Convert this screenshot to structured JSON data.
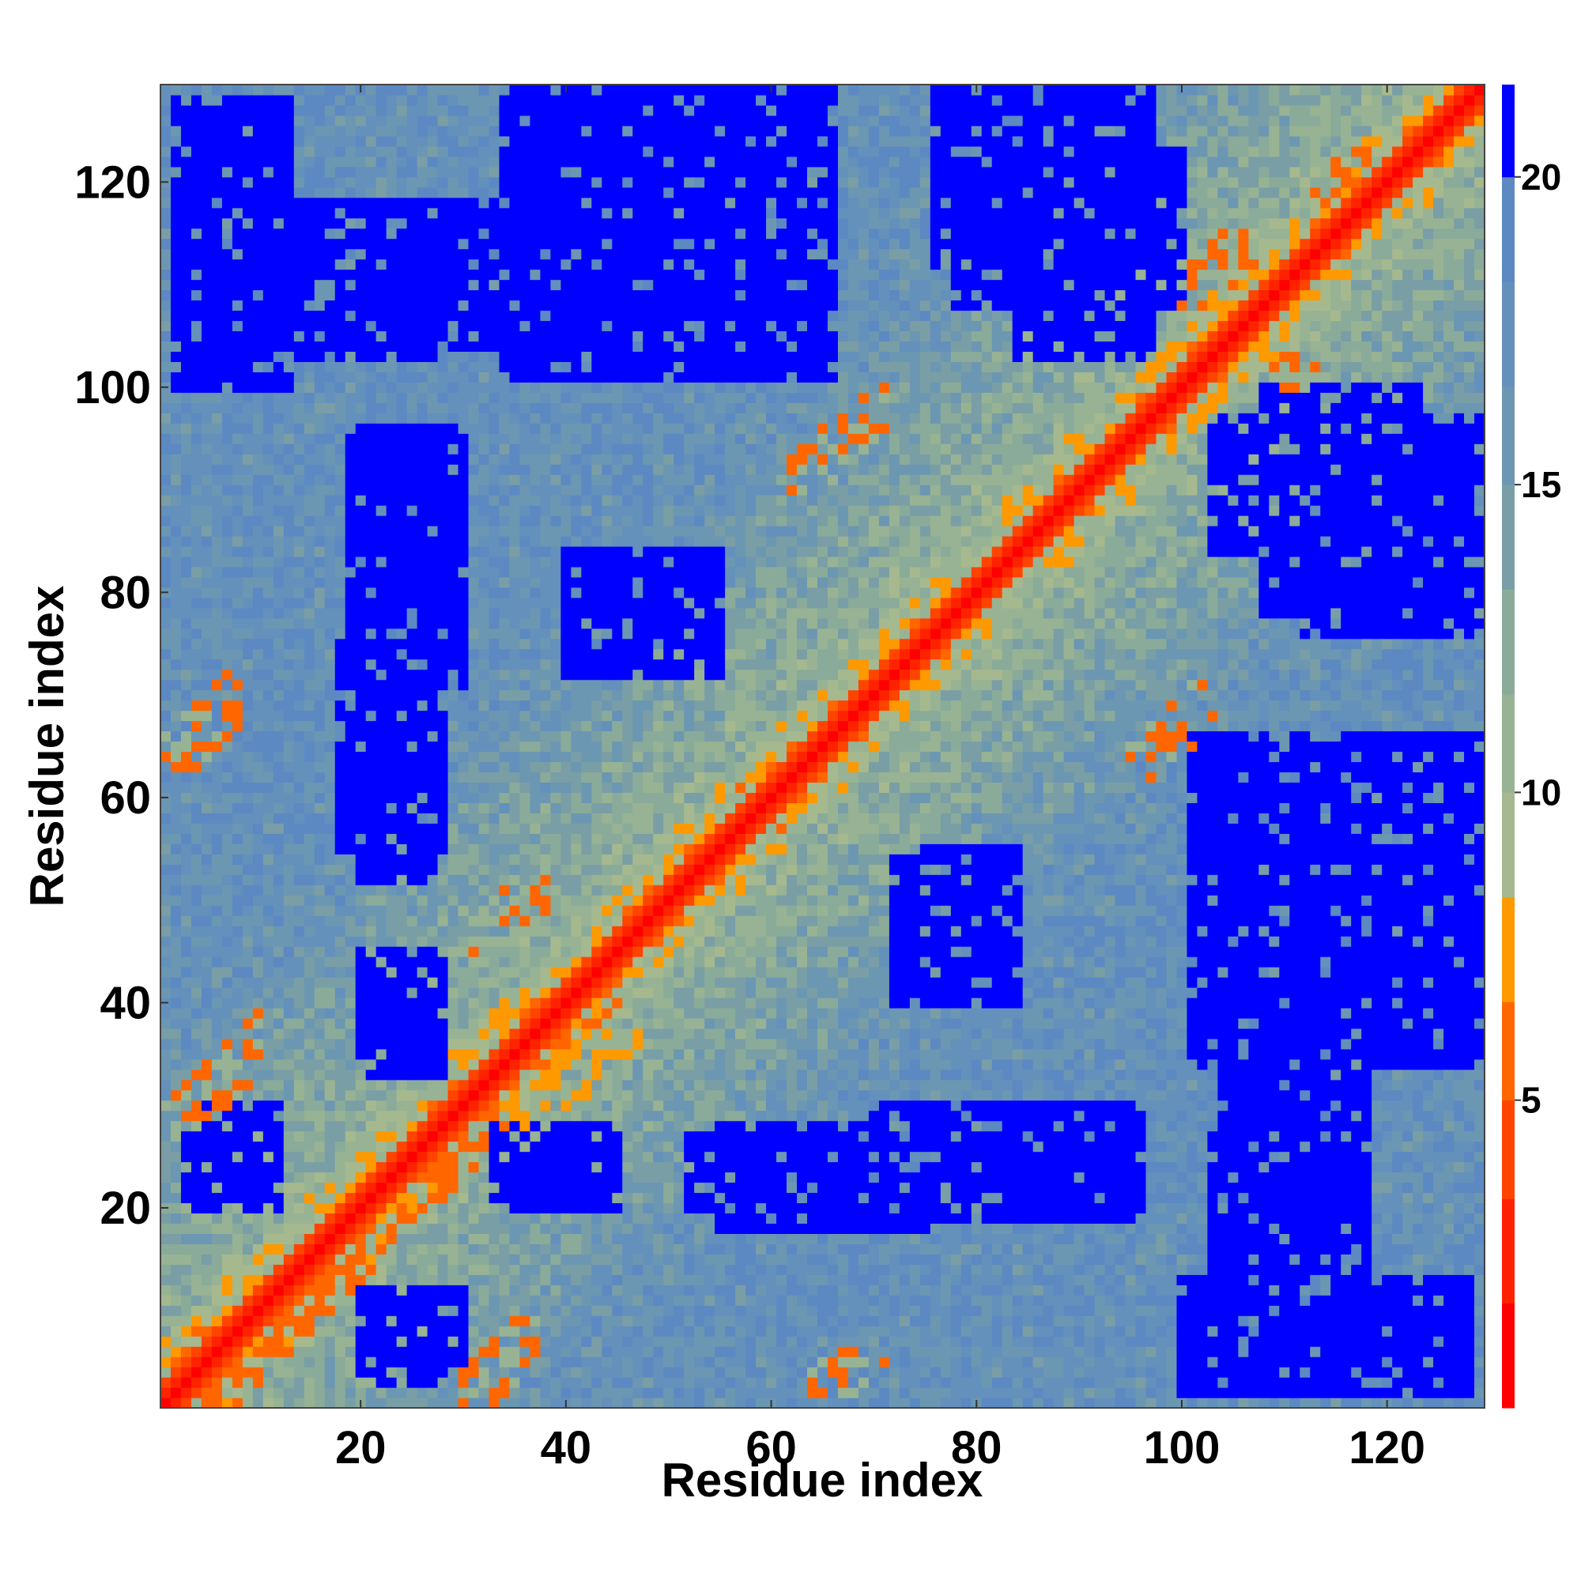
{
  "chart_data": {
    "type": "heatmap",
    "title": "",
    "xlabel": "Residue index",
    "ylabel": "Residue index",
    "n_residues": 129,
    "xlim": [
      1,
      129
    ],
    "ylim": [
      1,
      129
    ],
    "x_ticks": [
      20,
      40,
      60,
      80,
      100,
      120
    ],
    "y_ticks": [
      20,
      40,
      60,
      80,
      100,
      120
    ],
    "x_tick_labels": [
      "20",
      "40",
      "60",
      "80",
      "100",
      "120"
    ],
    "y_tick_labels": [
      "20",
      "40",
      "60",
      "80",
      "100",
      "120"
    ],
    "colorbar": {
      "min": 0,
      "max": 21.5,
      "ticks": [
        5,
        10,
        15,
        20
      ],
      "tick_labels": [
        "5",
        "10",
        "15",
        "20"
      ],
      "levels": [
        {
          "upto": 1.7,
          "color": "#ff0000"
        },
        {
          "upto": 3.4,
          "color": "#ff2200"
        },
        {
          "upto": 5.0,
          "color": "#ff4400"
        },
        {
          "upto": 6.6,
          "color": "#ff6600"
        },
        {
          "upto": 8.3,
          "color": "#ff9900"
        },
        {
          "upto": 10.0,
          "color": "#a6b98e"
        },
        {
          "upto": 11.6,
          "color": "#98b394"
        },
        {
          "upto": 13.3,
          "color": "#8aab9a"
        },
        {
          "upto": 15.0,
          "color": "#7a9ea6"
        },
        {
          "upto": 16.6,
          "color": "#6c97b2"
        },
        {
          "upto": 18.3,
          "color": "#6490bc"
        },
        {
          "upto": 20.0,
          "color": "#5c89c2"
        },
        {
          "upto": 21.5,
          "color": "#0000ff"
        }
      ]
    },
    "diagonal_value": 0,
    "far_value": 21.5,
    "contact_regions": [
      {
        "x": [
          5,
          45
        ],
        "y": [
          1,
          42
        ],
        "value": 5.5
      },
      {
        "x": [
          30,
          37
        ],
        "y": [
          1,
          9
        ],
        "value": 6.5
      },
      {
        "x": [
          64,
          71
        ],
        "y": [
          1,
          6
        ],
        "value": 6.5
      },
      {
        "x": [
          36,
          54
        ],
        "y": [
          28,
          37
        ],
        "value": 7.0
      },
      {
        "x": [
          31,
          38
        ],
        "y": [
          45,
          54
        ],
        "value": 6.5
      },
      {
        "x": [
          1,
          10
        ],
        "y": [
          27,
          40
        ],
        "value": 6.5
      },
      {
        "x": [
          1,
          8
        ],
        "y": [
          63,
          72
        ],
        "value": 6.5
      },
      {
        "x": [
          95,
          103
        ],
        "y": [
          62,
          72
        ],
        "value": 6.5
      },
      {
        "x": [
          62,
          71
        ],
        "y": [
          90,
          100
        ],
        "value": 6.5
      },
      {
        "x": [
          100,
          107
        ],
        "y": [
          108,
          115
        ],
        "value": 6.5
      },
      {
        "x": [
          109,
          113
        ],
        "y": [
          100,
          103
        ],
        "value": 6.5
      },
      {
        "x": [
          113,
          121
        ],
        "y": [
          117,
          123
        ],
        "value": 6.5
      }
    ],
    "distant_regions": [
      {
        "x": [
          4,
          12
        ],
        "y": [
          20,
          30
        ],
        "value": 21.5
      },
      {
        "x": [
          21,
          27
        ],
        "y": [
          3,
          10
        ],
        "value": 21.5
      },
      {
        "x": [
          33,
          44
        ],
        "y": [
          21,
          28
        ],
        "value": 21.5
      },
      {
        "x": [
          52,
          61
        ],
        "y": [
          20,
          27
        ],
        "value": 21.5
      },
      {
        "x": [
          70,
          96
        ],
        "y": [
          20,
          29
        ],
        "value": 21.5
      },
      {
        "x": [
          103,
          118
        ],
        "y": [
          3,
          27
        ],
        "value": 21.5
      },
      {
        "x": [
          102,
          128
        ],
        "y": [
          34,
          66
        ],
        "value": 21.5
      },
      {
        "x": [
          72,
          84
        ],
        "y": [
          40,
          55
        ],
        "value": 21.5
      },
      {
        "x": [
          20,
          27
        ],
        "y": [
          35,
          45
        ],
        "value": 21.5
      },
      {
        "x": [
          18,
          28
        ],
        "y": [
          55,
          75
        ],
        "value": 21.5
      },
      {
        "x": [
          19,
          30
        ],
        "y": [
          71,
          95
        ],
        "value": 21.5
      },
      {
        "x": [
          40,
          54
        ],
        "y": [
          72,
          83
        ],
        "value": 21.5
      },
      {
        "x": [
          108,
          123
        ],
        "y": [
          78,
          100
        ],
        "value": 21.5
      },
      {
        "x": [
          2,
          13
        ],
        "y": [
          100,
          128
        ],
        "value": 21.5
      },
      {
        "x": [
          20,
          33
        ],
        "y": [
          104,
          118
        ],
        "value": 21.5
      },
      {
        "x": [
          35,
          66
        ],
        "y": [
          101,
          129
        ],
        "value": 21.5
      },
      {
        "x": [
          76,
          97
        ],
        "y": [
          112,
          129
        ],
        "value": 21.5
      },
      {
        "x": [
          84,
          97
        ],
        "y": [
          103,
          110
        ],
        "value": 21.5
      }
    ]
  }
}
